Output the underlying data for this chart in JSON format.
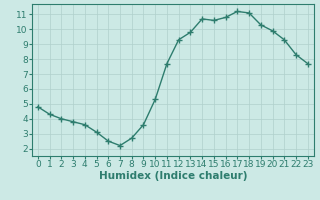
{
  "xlabel": "Humidex (Indice chaleur)",
  "x": [
    0,
    1,
    2,
    3,
    4,
    5,
    6,
    7,
    8,
    9,
    10,
    11,
    12,
    13,
    14,
    15,
    16,
    17,
    18,
    19,
    20,
    21,
    22,
    23
  ],
  "y": [
    4.8,
    4.3,
    4.0,
    3.8,
    3.6,
    3.1,
    2.5,
    2.2,
    2.7,
    3.6,
    5.3,
    7.7,
    9.3,
    9.8,
    10.7,
    10.6,
    10.8,
    11.2,
    11.1,
    10.3,
    9.9,
    9.3,
    8.3,
    7.7
  ],
  "line_color": "#2e7d6e",
  "marker": "+",
  "marker_size": 4,
  "marker_linewidth": 1.0,
  "line_width": 1.0,
  "bg_color": "#cce9e5",
  "grid_color": "#b0d0cc",
  "ylim": [
    1.5,
    11.7
  ],
  "xlim": [
    -0.5,
    23.5
  ],
  "yticks": [
    2,
    3,
    4,
    5,
    6,
    7,
    8,
    9,
    10,
    11
  ],
  "xticks": [
    0,
    1,
    2,
    3,
    4,
    5,
    6,
    7,
    8,
    9,
    10,
    11,
    12,
    13,
    14,
    15,
    16,
    17,
    18,
    19,
    20,
    21,
    22,
    23
  ],
  "tick_fontsize": 6.5,
  "xlabel_fontsize": 7.5,
  "axis_color": "#2e7d6e",
  "spine_color": "#2e7d6e"
}
